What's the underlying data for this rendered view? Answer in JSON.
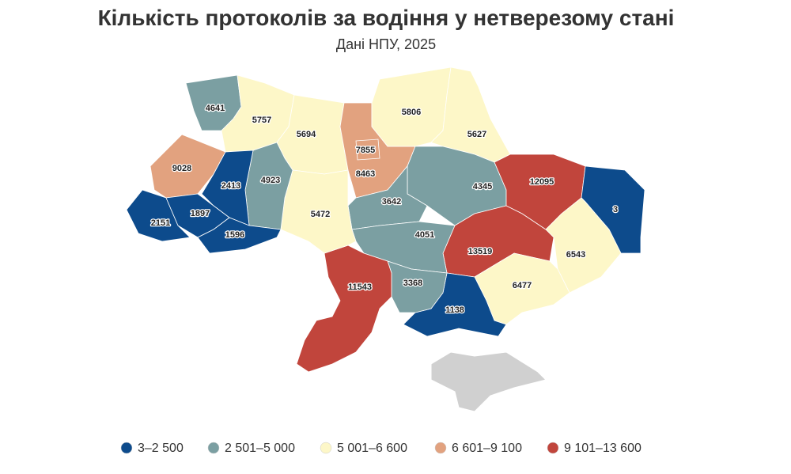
{
  "title": "Кількість протоколів за водіння у нетверезому стані",
  "subtitle": "Дані НПУ, 2025",
  "regions": [
    {
      "value": 4641,
      "color": "#7b9fa2"
    },
    {
      "value": 5757,
      "color": "#fdf7c8"
    },
    {
      "value": 5694,
      "color": "#fdf7c8"
    },
    {
      "value": 8463,
      "color": "#e2a27f"
    },
    {
      "value": 7855,
      "color": "#e2a27f"
    },
    {
      "value": 5806,
      "color": "#fdf7c8"
    },
    {
      "value": 5627,
      "color": "#fdf7c8"
    },
    {
      "value": 4345,
      "color": "#7b9fa2"
    },
    {
      "value": 3642,
      "color": "#7b9fa2"
    },
    {
      "value": 12095,
      "color": "#c1453c"
    },
    {
      "value": 3,
      "color": "#0d4b8c"
    },
    {
      "value": 6543,
      "color": "#fdf7c8"
    },
    {
      "value": 13519,
      "color": "#c1453c"
    },
    {
      "value": 6477,
      "color": "#fdf7c8"
    },
    {
      "value": 1138,
      "color": "#0d4b8c"
    },
    {
      "value": 4051,
      "color": "#7b9fa2"
    },
    {
      "value": 3368,
      "color": "#7b9fa2"
    },
    {
      "value": 11543,
      "color": "#c1453c"
    },
    {
      "value": 5472,
      "color": "#fdf7c8"
    },
    {
      "value": 4923,
      "color": "#7b9fa2"
    },
    {
      "value": 9028,
      "color": "#e2a27f"
    },
    {
      "value": 2413,
      "color": "#0d4b8c"
    },
    {
      "value": 2151,
      "color": "#0d4b8c"
    },
    {
      "value": 1897,
      "color": "#0d4b8c"
    },
    {
      "value": 1596,
      "color": "#0d4b8c"
    }
  ],
  "legend": [
    {
      "label": "3–2 500",
      "color": "#0d4b8c"
    },
    {
      "label": "2 501–5 000",
      "color": "#7b9fa2"
    },
    {
      "label": "5 001–6 600",
      "color": "#fdf7c8"
    },
    {
      "label": "6 601–9 100",
      "color": "#e2a27f"
    },
    {
      "label": "9 101–13 600",
      "color": "#c1453c"
    }
  ]
}
